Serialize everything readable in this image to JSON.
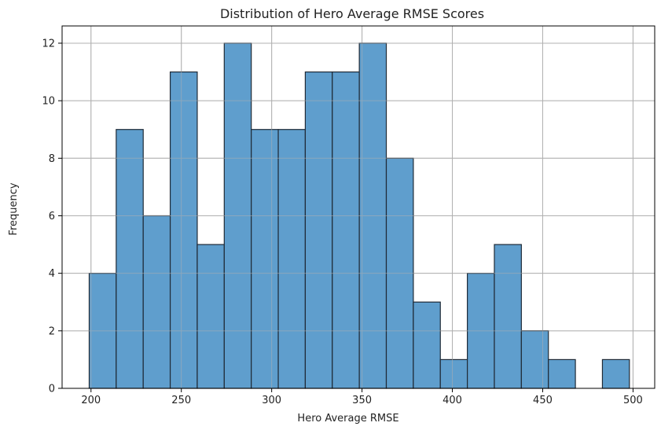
{
  "chart_data": {
    "type": "bar",
    "title": "Distribution of Hero Average RMSE Scores",
    "xlabel": "Hero Average RMSE",
    "ylabel": "Frequency",
    "xlim": [
      184,
      512
    ],
    "ylim": [
      0,
      12.6
    ],
    "grid": true,
    "xticks": [
      200,
      250,
      300,
      350,
      400,
      450,
      500
    ],
    "yticks": [
      0,
      2,
      4,
      6,
      8,
      10,
      12
    ],
    "bin_start": 199,
    "bin_width": 14.95,
    "bins": [
      {
        "x0": 199.0,
        "x1": 213.95,
        "count": 4
      },
      {
        "x0": 213.95,
        "x1": 228.9,
        "count": 9
      },
      {
        "x0": 228.9,
        "x1": 243.85,
        "count": 6
      },
      {
        "x0": 243.85,
        "x1": 258.8,
        "count": 11
      },
      {
        "x0": 258.8,
        "x1": 273.75,
        "count": 5
      },
      {
        "x0": 273.75,
        "x1": 288.7,
        "count": 12
      },
      {
        "x0": 288.7,
        "x1": 303.65,
        "count": 9
      },
      {
        "x0": 303.65,
        "x1": 318.6,
        "count": 9
      },
      {
        "x0": 318.6,
        "x1": 333.55,
        "count": 11
      },
      {
        "x0": 333.55,
        "x1": 348.5,
        "count": 11
      },
      {
        "x0": 348.5,
        "x1": 363.45,
        "count": 12
      },
      {
        "x0": 363.45,
        "x1": 378.4,
        "count": 8
      },
      {
        "x0": 378.4,
        "x1": 393.35,
        "count": 3
      },
      {
        "x0": 393.35,
        "x1": 408.3,
        "count": 1
      },
      {
        "x0": 408.3,
        "x1": 423.25,
        "count": 4
      },
      {
        "x0": 423.25,
        "x1": 438.2,
        "count": 5
      },
      {
        "x0": 438.2,
        "x1": 453.15,
        "count": 2
      },
      {
        "x0": 453.15,
        "x1": 468.1,
        "count": 1
      },
      {
        "x0": 468.1,
        "x1": 483.05,
        "count": 0
      },
      {
        "x0": 483.05,
        "x1": 498.0,
        "count": 1
      }
    ],
    "colors": {
      "bar_fill": "#5f9ecd",
      "bar_edge": "#1f2a36",
      "grid": "#b0b0b0",
      "axis": "#000000"
    }
  }
}
